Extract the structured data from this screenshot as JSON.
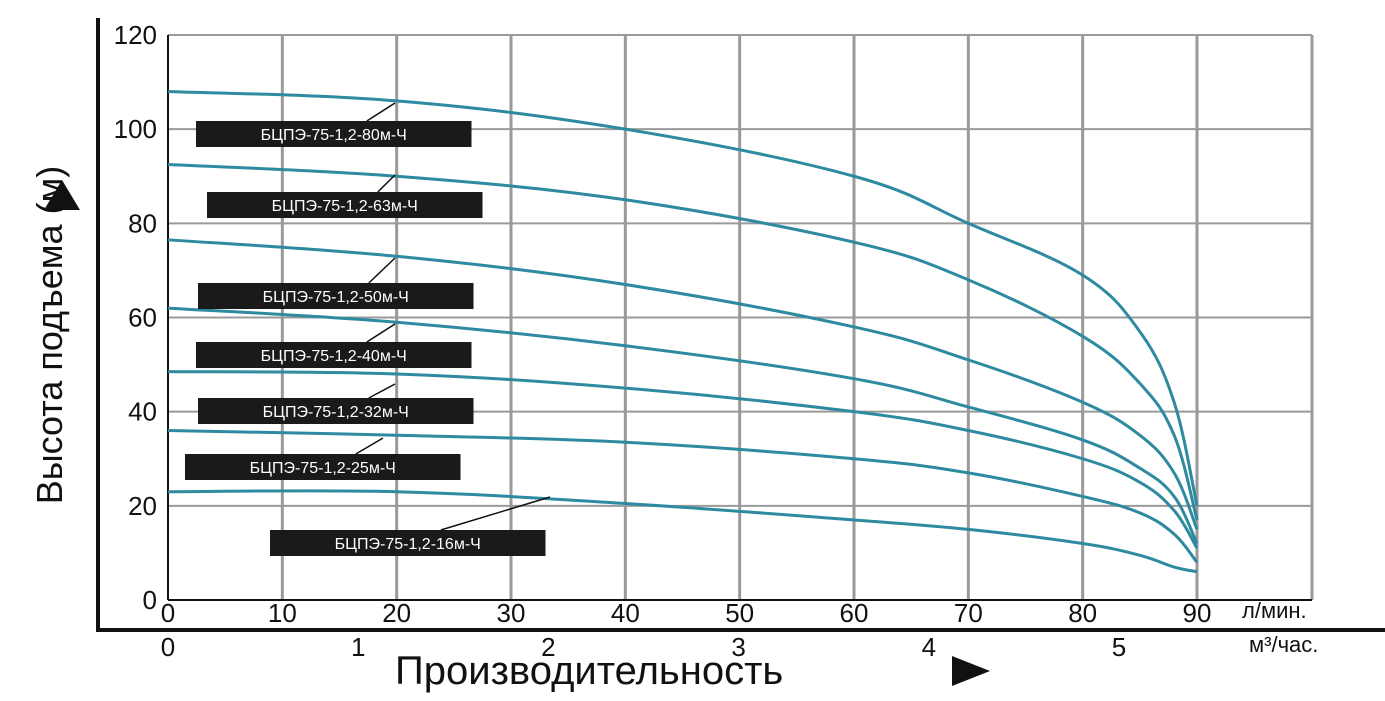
{
  "chart_data": {
    "type": "line",
    "ylabel": "Высота подъема (м)",
    "xlabel": "Производительность",
    "x_unit_primary": "л/мин.",
    "x_unit_secondary": "м³/час.",
    "xlim": [
      0,
      90
    ],
    "ylim": [
      0,
      120
    ],
    "x_ticks": [
      "0",
      "10",
      "20",
      "30",
      "40",
      "50",
      "60",
      "70",
      "80",
      "90"
    ],
    "x2_ticks": [
      "0",
      "1",
      "2",
      "3",
      "4",
      "5"
    ],
    "y_ticks": [
      "0",
      "20",
      "40",
      "60",
      "80",
      "100",
      "120"
    ],
    "grid": true,
    "colors": {
      "line": "#2e8aa0",
      "grid": "#9a9a9a",
      "label_bg": "#1a1a1a",
      "label_text": "#ffffff"
    },
    "series": [
      {
        "name": "БЦПЭ-75-1,2-80м-Ч",
        "x": [
          0,
          20,
          40,
          60,
          70,
          80,
          85,
          88,
          90
        ],
        "y": [
          108,
          106,
          100,
          90,
          80,
          69,
          57,
          42,
          20
        ]
      },
      {
        "name": "БЦПЭ-75-1,2-63м-Ч",
        "x": [
          0,
          20,
          40,
          60,
          70,
          80,
          85,
          88,
          90
        ],
        "y": [
          92.5,
          90,
          85,
          76,
          68,
          56,
          46,
          35,
          17
        ]
      },
      {
        "name": "БЦПЭ-75-1,2-50м-Ч",
        "x": [
          0,
          20,
          40,
          60,
          70,
          80,
          85,
          88,
          90
        ],
        "y": [
          76.5,
          73,
          67,
          58,
          51,
          42,
          35,
          27,
          15
        ]
      },
      {
        "name": "БЦПЭ-75-1,2-40м-Ч",
        "x": [
          0,
          20,
          40,
          60,
          70,
          80,
          85,
          88,
          90
        ],
        "y": [
          62,
          59,
          54,
          47,
          41,
          34,
          28,
          22,
          12
        ]
      },
      {
        "name": "БЦПЭ-75-1,2-32м-Ч",
        "x": [
          0,
          20,
          40,
          60,
          70,
          80,
          85,
          88,
          90
        ],
        "y": [
          48.5,
          48,
          45,
          40,
          36,
          30,
          25,
          19,
          11
        ]
      },
      {
        "name": "БЦПЭ-75-1,2-25м-Ч",
        "x": [
          0,
          20,
          40,
          60,
          70,
          80,
          85,
          88,
          90
        ],
        "y": [
          36,
          35,
          33.5,
          30,
          27,
          22,
          18.5,
          14,
          8
        ]
      },
      {
        "name": "БЦПЭ-75-1,2-16м-Ч",
        "x": [
          0,
          20,
          40,
          60,
          70,
          80,
          85,
          88,
          90
        ],
        "y": [
          23,
          23,
          20.5,
          17,
          15,
          12,
          9.5,
          7,
          6
        ]
      }
    ]
  }
}
